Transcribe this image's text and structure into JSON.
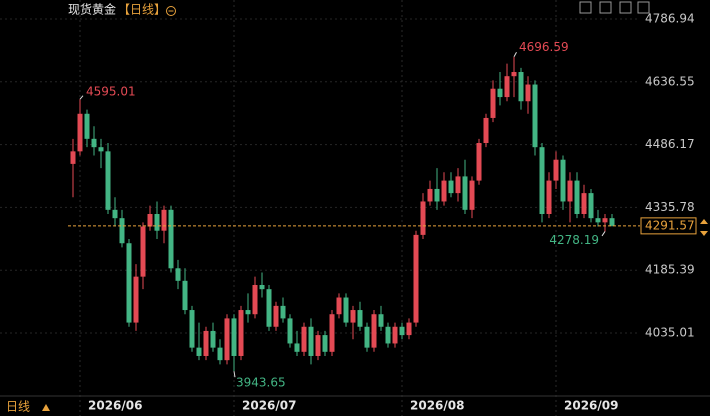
{
  "chart_data": {
    "type": "candlestick",
    "title": "现货黄金",
    "period": "【日线】",
    "period_selector": "日线",
    "up_color": "#e34a54",
    "down_color": "#43b584",
    "ylim": [
      3886.58,
      4832.44
    ],
    "yticks": [
      4786.94,
      4636.55,
      4486.17,
      4335.78,
      4185.39,
      4035.01
    ],
    "xticks": [
      {
        "value": 1,
        "label": "2026/06"
      },
      {
        "value": 23,
        "label": "2026/07"
      },
      {
        "value": 47,
        "label": "2026/08"
      },
      {
        "value": 69,
        "label": "2026/09"
      }
    ],
    "grid": true,
    "open": [
      4440,
      4470,
      4560,
      4500,
      4480,
      4470,
      4330,
      4310,
      4250,
      4060,
      4170,
      4290,
      4320,
      4280,
      4330,
      4190,
      4160,
      4090,
      4000,
      3980,
      4040,
      4000,
      3970,
      4070,
      3980,
      4090,
      4080,
      4150,
      4140,
      4050,
      4100,
      4070,
      4010,
      3990,
      4050,
      3980,
      4030,
      3990,
      4080,
      4120,
      4060,
      4090,
      4050,
      4000,
      4080,
      4050,
      4010,
      4050,
      4030,
      4060,
      4270,
      4350,
      4380,
      4350,
      4400,
      4370,
      4410,
      4330,
      4400,
      4490,
      4550,
      4620,
      4600,
      4650,
      4660,
      4590,
      4630,
      4480,
      4320,
      4400,
      4450,
      4350,
      4400,
      4320,
      4370,
      4310,
      4300,
      4310
    ],
    "high": [
      4500,
      4595.01,
      4570,
      4530,
      4500,
      4490,
      4360,
      4330,
      4260,
      4200,
      4300,
      4340,
      4350,
      4340,
      4340,
      4210,
      4190,
      4100,
      4060,
      4050,
      4060,
      4020,
      4080,
      4080,
      4100,
      4130,
      4170,
      4180,
      4150,
      4110,
      4120,
      4080,
      4040,
      4060,
      4070,
      4040,
      4040,
      4090,
      4130,
      4130,
      4100,
      4110,
      4060,
      4090,
      4100,
      4060,
      4060,
      4060,
      4070,
      4280,
      4370,
      4400,
      4430,
      4420,
      4420,
      4430,
      4450,
      4410,
      4500,
      4560,
      4640,
      4660,
      4680,
      4696.59,
      4670,
      4650,
      4640,
      4490,
      4420,
      4470,
      4460,
      4420,
      4420,
      4390,
      4380,
      4330,
      4320,
      4320
    ],
    "low": [
      4360,
      4460,
      4480,
      4460,
      4430,
      4320,
      4290,
      4240,
      4050,
      4040,
      4140,
      4280,
      4260,
      4250,
      4180,
      4140,
      4080,
      3990,
      3970,
      3970,
      3990,
      3960,
      3960,
      3943.65,
      3970,
      4060,
      4070,
      4120,
      4040,
      4040,
      4060,
      4000,
      3980,
      3980,
      3960,
      3970,
      3980,
      3980,
      4070,
      4050,
      4020,
      4040,
      3990,
      3990,
      4040,
      4000,
      4000,
      4020,
      4020,
      4050,
      4260,
      4340,
      4330,
      4340,
      4360,
      4350,
      4320,
      4310,
      4390,
      4480,
      4540,
      4580,
      4590,
      4600,
      4570,
      4560,
      4460,
      4300,
      4310,
      4380,
      4330,
      4300,
      4310,
      4310,
      4300,
      4290,
      4278.19,
      4290
    ],
    "close": [
      4470,
      4560,
      4500,
      4480,
      4470,
      4330,
      4310,
      4250,
      4060,
      4170,
      4290,
      4320,
      4280,
      4330,
      4190,
      4160,
      4090,
      4000,
      3980,
      4040,
      4000,
      3970,
      4070,
      3980,
      4090,
      4080,
      4150,
      4140,
      4050,
      4100,
      4070,
      4010,
      3990,
      4050,
      3980,
      4030,
      3990,
      4080,
      4120,
      4060,
      4090,
      4050,
      4000,
      4080,
      4050,
      4010,
      4050,
      4030,
      4060,
      4270,
      4350,
      4380,
      4350,
      4400,
      4370,
      4410,
      4330,
      4400,
      4490,
      4550,
      4620,
      4600,
      4650,
      4660,
      4590,
      4630,
      4480,
      4320,
      4400,
      4450,
      4350,
      4400,
      4320,
      4370,
      4310,
      4300,
      4310,
      4291.57
    ],
    "last_line_color": "#e8a23c"
  }
}
